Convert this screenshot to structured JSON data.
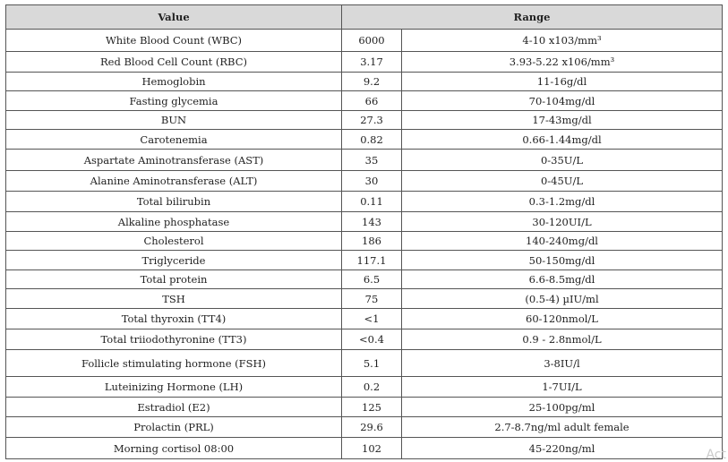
{
  "table": {
    "header": [
      "Value",
      "Range"
    ],
    "rows": [
      [
        "White Blood Count (WBC)",
        "6000",
        "4-10 x103/mm³"
      ],
      [
        "Red Blood Cell Count (RBC)",
        "3.17",
        "3.93-5.22 x106/mm³"
      ],
      [
        "Hemoglobin",
        "9.2",
        "11-16g/dl"
      ],
      [
        "Fasting glycemia",
        "66",
        "70-104mg/dl"
      ],
      [
        "BUN",
        "27.3",
        "17-43mg/dl"
      ],
      [
        "Carotenemia",
        "0.82",
        "0.66-1.44mg/dl"
      ],
      [
        "Aspartate Aminotransferase (AST)",
        "35",
        "0-35U/L"
      ],
      [
        "Alanine Aminotransferase (ALT)",
        "30",
        "0-45U/L"
      ],
      [
        "Total bilirubin",
        "0.11",
        "0.3-1.2mg/dl"
      ],
      [
        "Alkaline phosphatase",
        "143",
        "30-120UI/L"
      ],
      [
        "Cholesterol",
        "186",
        "140-240mg/dl"
      ],
      [
        "Triglyceride",
        "117.1",
        "50-150mg/dl"
      ],
      [
        "Total protein",
        "6.5",
        "6.6-8.5mg/dl"
      ],
      [
        "TSH",
        "75",
        "(0.5-4) µIU/ml"
      ],
      [
        "Total thyroxin (TT4)",
        "<1",
        "60-120nmol/L"
      ],
      [
        "Total triiodothyronine (TT3)",
        "<0.4",
        "0.9 - 2.8nmol/L"
      ],
      [
        "Follicle stimulating hormone (FSH)",
        "5.1",
        "3-8IU/l"
      ],
      [
        "Luteinizing Hormone (LH)",
        "0.2",
        "1-7UI/L"
      ],
      [
        "Estradiol (E2)",
        "125",
        "25-100pg/ml"
      ],
      [
        "Prolactin (PRL)",
        "29.6",
        "2.7-8.7ng/ml adult female"
      ],
      [
        "Morning cortisol 08:00",
        "102",
        "45-220ng/ml"
      ]
    ]
  },
  "watermark": "Act"
}
